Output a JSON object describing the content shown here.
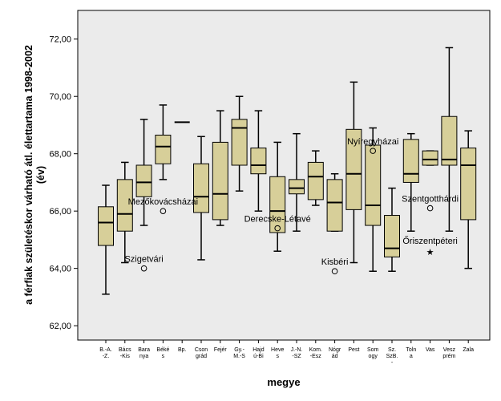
{
  "chart_data": {
    "type": "boxplot",
    "xlabel": "megye",
    "ylabel_line1": "a férfiak születéskor várható átl. élettartama 1998-2002",
    "ylabel_line2": "(év)",
    "ylim": [
      61.5,
      73.0
    ],
    "yticks": [
      "62,00",
      "64,00",
      "66,00",
      "68,00",
      "70,00",
      "72,00"
    ],
    "ytick_values": [
      62,
      64,
      66,
      68,
      70,
      72
    ],
    "grid": false,
    "colors": {
      "plot_background": "#ebebeb",
      "box_fill": "#d7cf99",
      "stroke": "#000000"
    },
    "categories": [
      {
        "label": [
          "B.-A.",
          "-Z."
        ],
        "min": 63.1,
        "q1": 64.8,
        "median": 65.6,
        "q3": 66.15,
        "max": 66.9
      },
      {
        "label": [
          "Bács",
          "-Kis"
        ],
        "min": 64.2,
        "q1": 65.3,
        "median": 65.9,
        "q3": 67.1,
        "max": 67.7
      },
      {
        "label": [
          "Bara",
          "nya"
        ],
        "min": 65.5,
        "q1": 66.5,
        "median": 67.0,
        "q3": 67.6,
        "max": 69.2
      },
      {
        "label": [
          "Béké",
          "s"
        ],
        "min": 67.1,
        "q1": 67.65,
        "median": 68.25,
        "q3": 68.65,
        "max": 69.7
      },
      {
        "label": [
          "Bp."
        ],
        "median": 69.1
      },
      {
        "label": [
          "Cson",
          "grád"
        ],
        "min": 64.3,
        "q1": 65.95,
        "median": 66.5,
        "q3": 67.65,
        "max": 68.6
      },
      {
        "label": [
          "Fejér"
        ],
        "min": 65.5,
        "q1": 65.7,
        "median": 66.6,
        "q3": 68.4,
        "max": 69.5
      },
      {
        "label": [
          "Gy.-",
          "M.-S"
        ],
        "min": 66.7,
        "q1": 67.6,
        "median": 68.9,
        "q3": 69.2,
        "max": 70.0
      },
      {
        "label": [
          "Hajd",
          "ú-Bi"
        ],
        "min": 66.0,
        "q1": 67.3,
        "median": 67.6,
        "q3": 68.2,
        "max": 69.5
      },
      {
        "label": [
          "Heve",
          "s"
        ],
        "min": 64.6,
        "q1": 65.25,
        "median": 66.0,
        "q3": 67.2,
        "max": 68.4
      },
      {
        "label": [
          "J.-N.",
          "-SZ"
        ],
        "min": 65.3,
        "q1": 66.6,
        "median": 66.8,
        "q3": 67.1,
        "max": 68.7
      },
      {
        "label": [
          "Kom.",
          "-Esz"
        ],
        "min": 66.2,
        "q1": 66.4,
        "median": 67.2,
        "q3": 67.7,
        "max": 68.1
      },
      {
        "label": [
          "Nógr",
          "ád"
        ],
        "min": 65.3,
        "q1": 65.3,
        "median": 66.3,
        "q3": 67.1,
        "max": 67.3
      },
      {
        "label": [
          "Pest"
        ],
        "min": 64.2,
        "q1": 66.05,
        "median": 67.3,
        "q3": 68.85,
        "max": 70.5
      },
      {
        "label": [
          "Som",
          "ogy"
        ],
        "min": 63.9,
        "q1": 65.5,
        "median": 66.2,
        "q3": 68.3,
        "max": 68.9
      },
      {
        "label": [
          "Sz.",
          "SzB.",
          "-"
        ],
        "min": 63.9,
        "q1": 64.4,
        "median": 64.7,
        "q3": 65.85,
        "max": 66.8
      },
      {
        "label": [
          "Toln",
          "a"
        ],
        "min": 65.3,
        "q1": 67.0,
        "median": 67.3,
        "q3": 68.5,
        "max": 68.7
      },
      {
        "label": [
          "Vas"
        ],
        "min": 67.6,
        "q1": 67.6,
        "median": 67.8,
        "q3": 68.1,
        "max": 68.1
      },
      {
        "label": [
          "Vesz",
          "prém"
        ],
        "min": 65.3,
        "q1": 67.6,
        "median": 67.8,
        "q3": 69.3,
        "max": 71.7
      },
      {
        "label": [
          "Zala"
        ],
        "min": 64.0,
        "q1": 65.7,
        "median": 67.6,
        "q3": 68.2,
        "max": 68.8
      }
    ],
    "outliers": [
      {
        "category_index": 3,
        "value": 66.0,
        "label": "Mezőkovácsházai",
        "marker": "circle"
      },
      {
        "category_index": 2,
        "value": 64.0,
        "label": "Szigetvári",
        "marker": "circle"
      },
      {
        "category_index": 9,
        "value": 65.4,
        "label": "Derecske-Létavé",
        "marker": "circle"
      },
      {
        "category_index": 12,
        "value": 63.9,
        "label": "Kisbéri",
        "marker": "circle"
      },
      {
        "category_index": 14,
        "value": 68.1,
        "label": "Nyíregyházai",
        "marker": "circle"
      },
      {
        "category_index": 17,
        "value": 66.1,
        "label": "Szentgotthárdi",
        "marker": "circle"
      },
      {
        "category_index": 17,
        "value": 64.6,
        "label": "Őriszentpéteri",
        "marker": "star"
      }
    ]
  }
}
